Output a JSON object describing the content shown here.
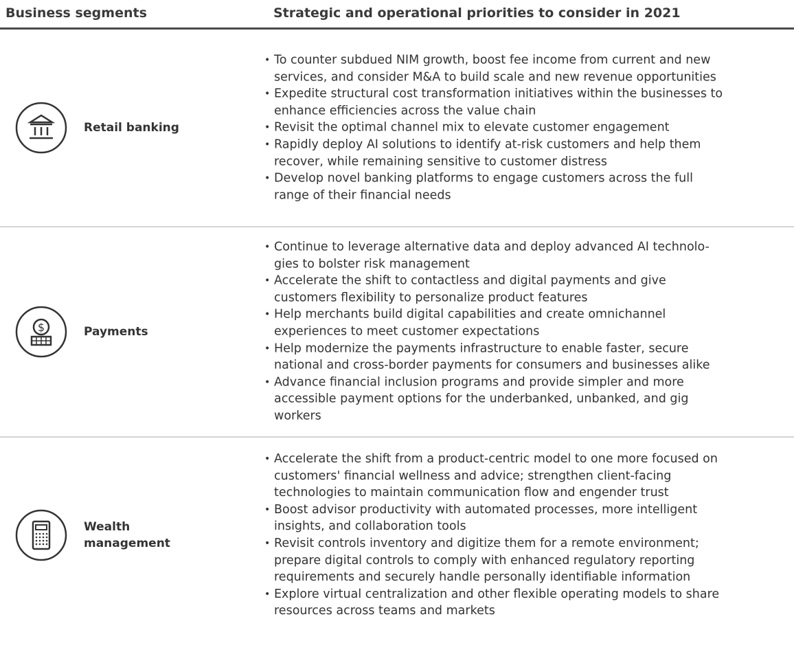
{
  "header": {
    "segments": "Business segments",
    "priorities": "Strategic and operational priorities to consider in 2021"
  },
  "rows": [
    {
      "segment": [
        "Retail banking"
      ],
      "bullets": [
        [
          "To counter subdued NIM growth, boost fee income from current and new",
          "services, and consider M&A to build scale and new revenue opportunities"
        ],
        [
          "Expedite structural cost transformation initiatives within the businesses to",
          "enhance efficiencies across the value chain"
        ],
        [
          "Revisit the optimal channel mix to elevate customer engagement"
        ],
        [
          "Rapidly deploy AI solutions to identify at-risk customers and help them",
          "recover, while remaining sensitive to customer distress"
        ],
        [
          "Develop novel banking platforms to engage customers across the full",
          "range of their financial needs"
        ]
      ]
    },
    {
      "segment": [
        "Payments"
      ],
      "bullets": [
        [
          "Continue to leverage alternative data and deploy advanced AI technolo-",
          "gies to bolster risk management"
        ],
        [
          "Accelerate the shift to contactless and digital payments and give",
          "customers flexibility to personalize product features"
        ],
        [
          "Help merchants build digital capabilities and create omnichannel",
          "experiences to meet customer expectations"
        ],
        [
          "Help modernize the payments infrastructure to enable faster, secure",
          "national and cross-border payments for consumers and businesses alike"
        ],
        [
          "Advance financial inclusion programs and provide simpler and more",
          "accessible payment options for the underbanked, unbanked, and gig",
          "workers"
        ]
      ]
    },
    {
      "segment": [
        "Wealth",
        "management"
      ],
      "bullets": [
        [
          "Accelerate the shift from a product-centric model to one more focused on",
          "customers' financial wellness and advice; strengthen client-facing",
          "technologies to maintain communication flow and engender trust"
        ],
        [
          "Boost advisor productivity with automated processes, more intelligent",
          "insights, and collaboration tools"
        ],
        [
          "Revisit controls inventory and digitize them for a remote environment;",
          "prepare digital controls to comply with enhanced regulatory reporting",
          "requirements and securely handle personally identifiable information"
        ],
        [
          "Explore virtual centralization and other flexible operating models to share",
          "resources across teams and markets"
        ]
      ]
    }
  ]
}
